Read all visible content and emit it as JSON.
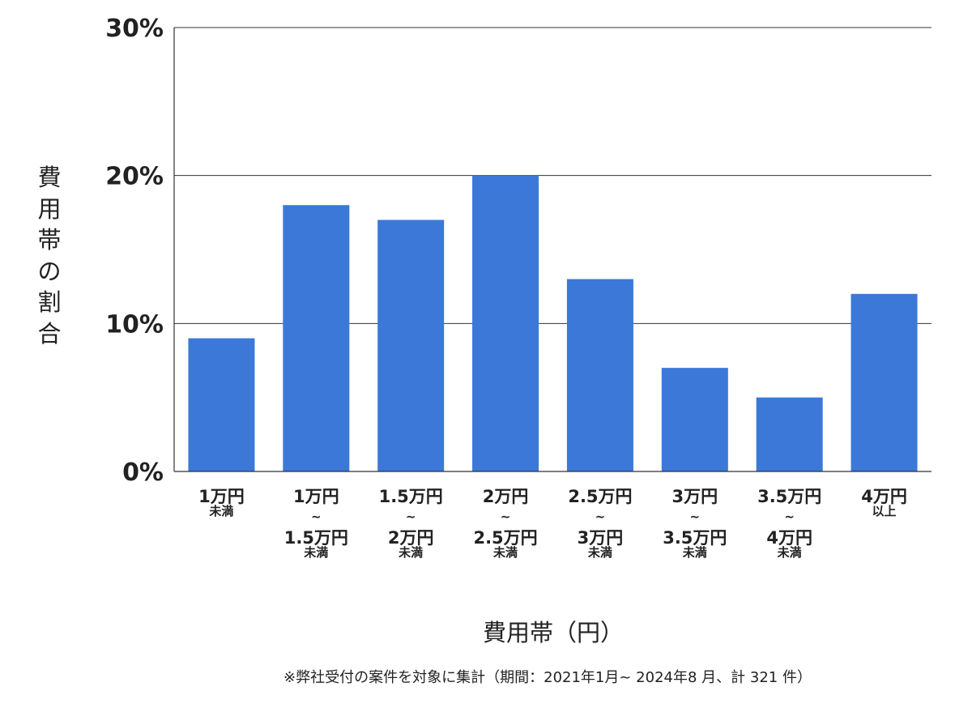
{
  "chart_data": {
    "type": "bar",
    "categories": [
      [
        "1万円",
        "未満"
      ],
      [
        "1万円",
        "~",
        "1.5万円",
        "未満"
      ],
      [
        "1.5万円",
        "~",
        "2万円",
        "未満"
      ],
      [
        "2万円",
        "~",
        "2.5万円",
        "未満"
      ],
      [
        "2.5万円",
        "~",
        "3万円",
        "未満"
      ],
      [
        "3万円",
        "~",
        "3.5万円",
        "未満"
      ],
      [
        "3.5万円",
        "~",
        "4万円",
        "未満"
      ],
      [
        "4万円",
        "以上"
      ]
    ],
    "values": [
      9,
      18,
      17,
      20,
      13,
      7,
      5,
      12
    ],
    "unit": "%",
    "ylim": [
      0,
      30
    ],
    "yticks": [
      "0%",
      "10%",
      "20%",
      "30%"
    ],
    "ylabel": "費用帯の割合",
    "xlabel": "費用帯（円）",
    "grid": true,
    "bar_color": "#3b78d8"
  },
  "note": "※弊社受付の案件を対象に集計（期間：2021年1月~ 2024年8 月、計 321 件）"
}
